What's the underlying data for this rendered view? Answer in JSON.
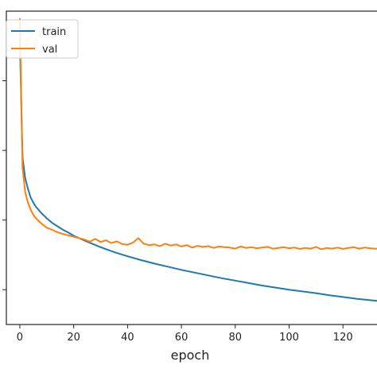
{
  "chart_data": {
    "type": "line",
    "title": "",
    "xlabel": "epoch",
    "ylabel": "",
    "xlim": [
      -5,
      135
    ],
    "ylim": [
      0.1,
      1.0
    ],
    "xticks": [
      0,
      20,
      40,
      60,
      80,
      100,
      120
    ],
    "grid": false,
    "legend_position": "top-left",
    "series": [
      {
        "name": "train",
        "color": "#1f77b4",
        "x": [
          0,
          1,
          2,
          3,
          4,
          5,
          6,
          8,
          10,
          12,
          14,
          16,
          18,
          20,
          25,
          30,
          35,
          40,
          45,
          50,
          55,
          60,
          65,
          70,
          75,
          80,
          85,
          90,
          95,
          100,
          105,
          110,
          115,
          120,
          125,
          130,
          135
        ],
        "y": [
          0.92,
          0.58,
          0.52,
          0.49,
          0.465,
          0.45,
          0.438,
          0.42,
          0.405,
          0.392,
          0.382,
          0.372,
          0.364,
          0.355,
          0.338,
          0.322,
          0.308,
          0.296,
          0.285,
          0.275,
          0.266,
          0.257,
          0.249,
          0.241,
          0.233,
          0.226,
          0.219,
          0.212,
          0.206,
          0.2,
          0.195,
          0.19,
          0.184,
          0.179,
          0.174,
          0.17,
          0.166
        ]
      },
      {
        "name": "val",
        "color": "#ff7f0e",
        "x": [
          0,
          1,
          2,
          3,
          4,
          5,
          6,
          8,
          10,
          12,
          14,
          16,
          18,
          20,
          22,
          24,
          26,
          28,
          30,
          32,
          34,
          36,
          38,
          40,
          42,
          44,
          46,
          48,
          50,
          52,
          54,
          56,
          58,
          60,
          62,
          64,
          66,
          68,
          70,
          72,
          74,
          76,
          78,
          80,
          82,
          84,
          86,
          88,
          90,
          92,
          94,
          96,
          98,
          100,
          102,
          104,
          106,
          108,
          110,
          112,
          114,
          116,
          118,
          120,
          122,
          124,
          126,
          128,
          130,
          132,
          135
        ],
        "y": [
          0.98,
          0.55,
          0.48,
          0.45,
          0.43,
          0.415,
          0.405,
          0.39,
          0.378,
          0.372,
          0.365,
          0.36,
          0.356,
          0.352,
          0.348,
          0.344,
          0.338,
          0.346,
          0.337,
          0.342,
          0.334,
          0.339,
          0.331,
          0.329,
          0.335,
          0.348,
          0.332,
          0.328,
          0.33,
          0.325,
          0.332,
          0.327,
          0.33,
          0.324,
          0.328,
          0.321,
          0.326,
          0.323,
          0.325,
          0.32,
          0.324,
          0.322,
          0.321,
          0.318,
          0.324,
          0.32,
          0.322,
          0.319,
          0.321,
          0.323,
          0.318,
          0.32,
          0.322,
          0.319,
          0.321,
          0.317,
          0.32,
          0.318,
          0.323,
          0.316,
          0.32,
          0.318,
          0.321,
          0.317,
          0.32,
          0.322,
          0.318,
          0.321,
          0.319,
          0.318,
          0.317
        ]
      }
    ]
  }
}
